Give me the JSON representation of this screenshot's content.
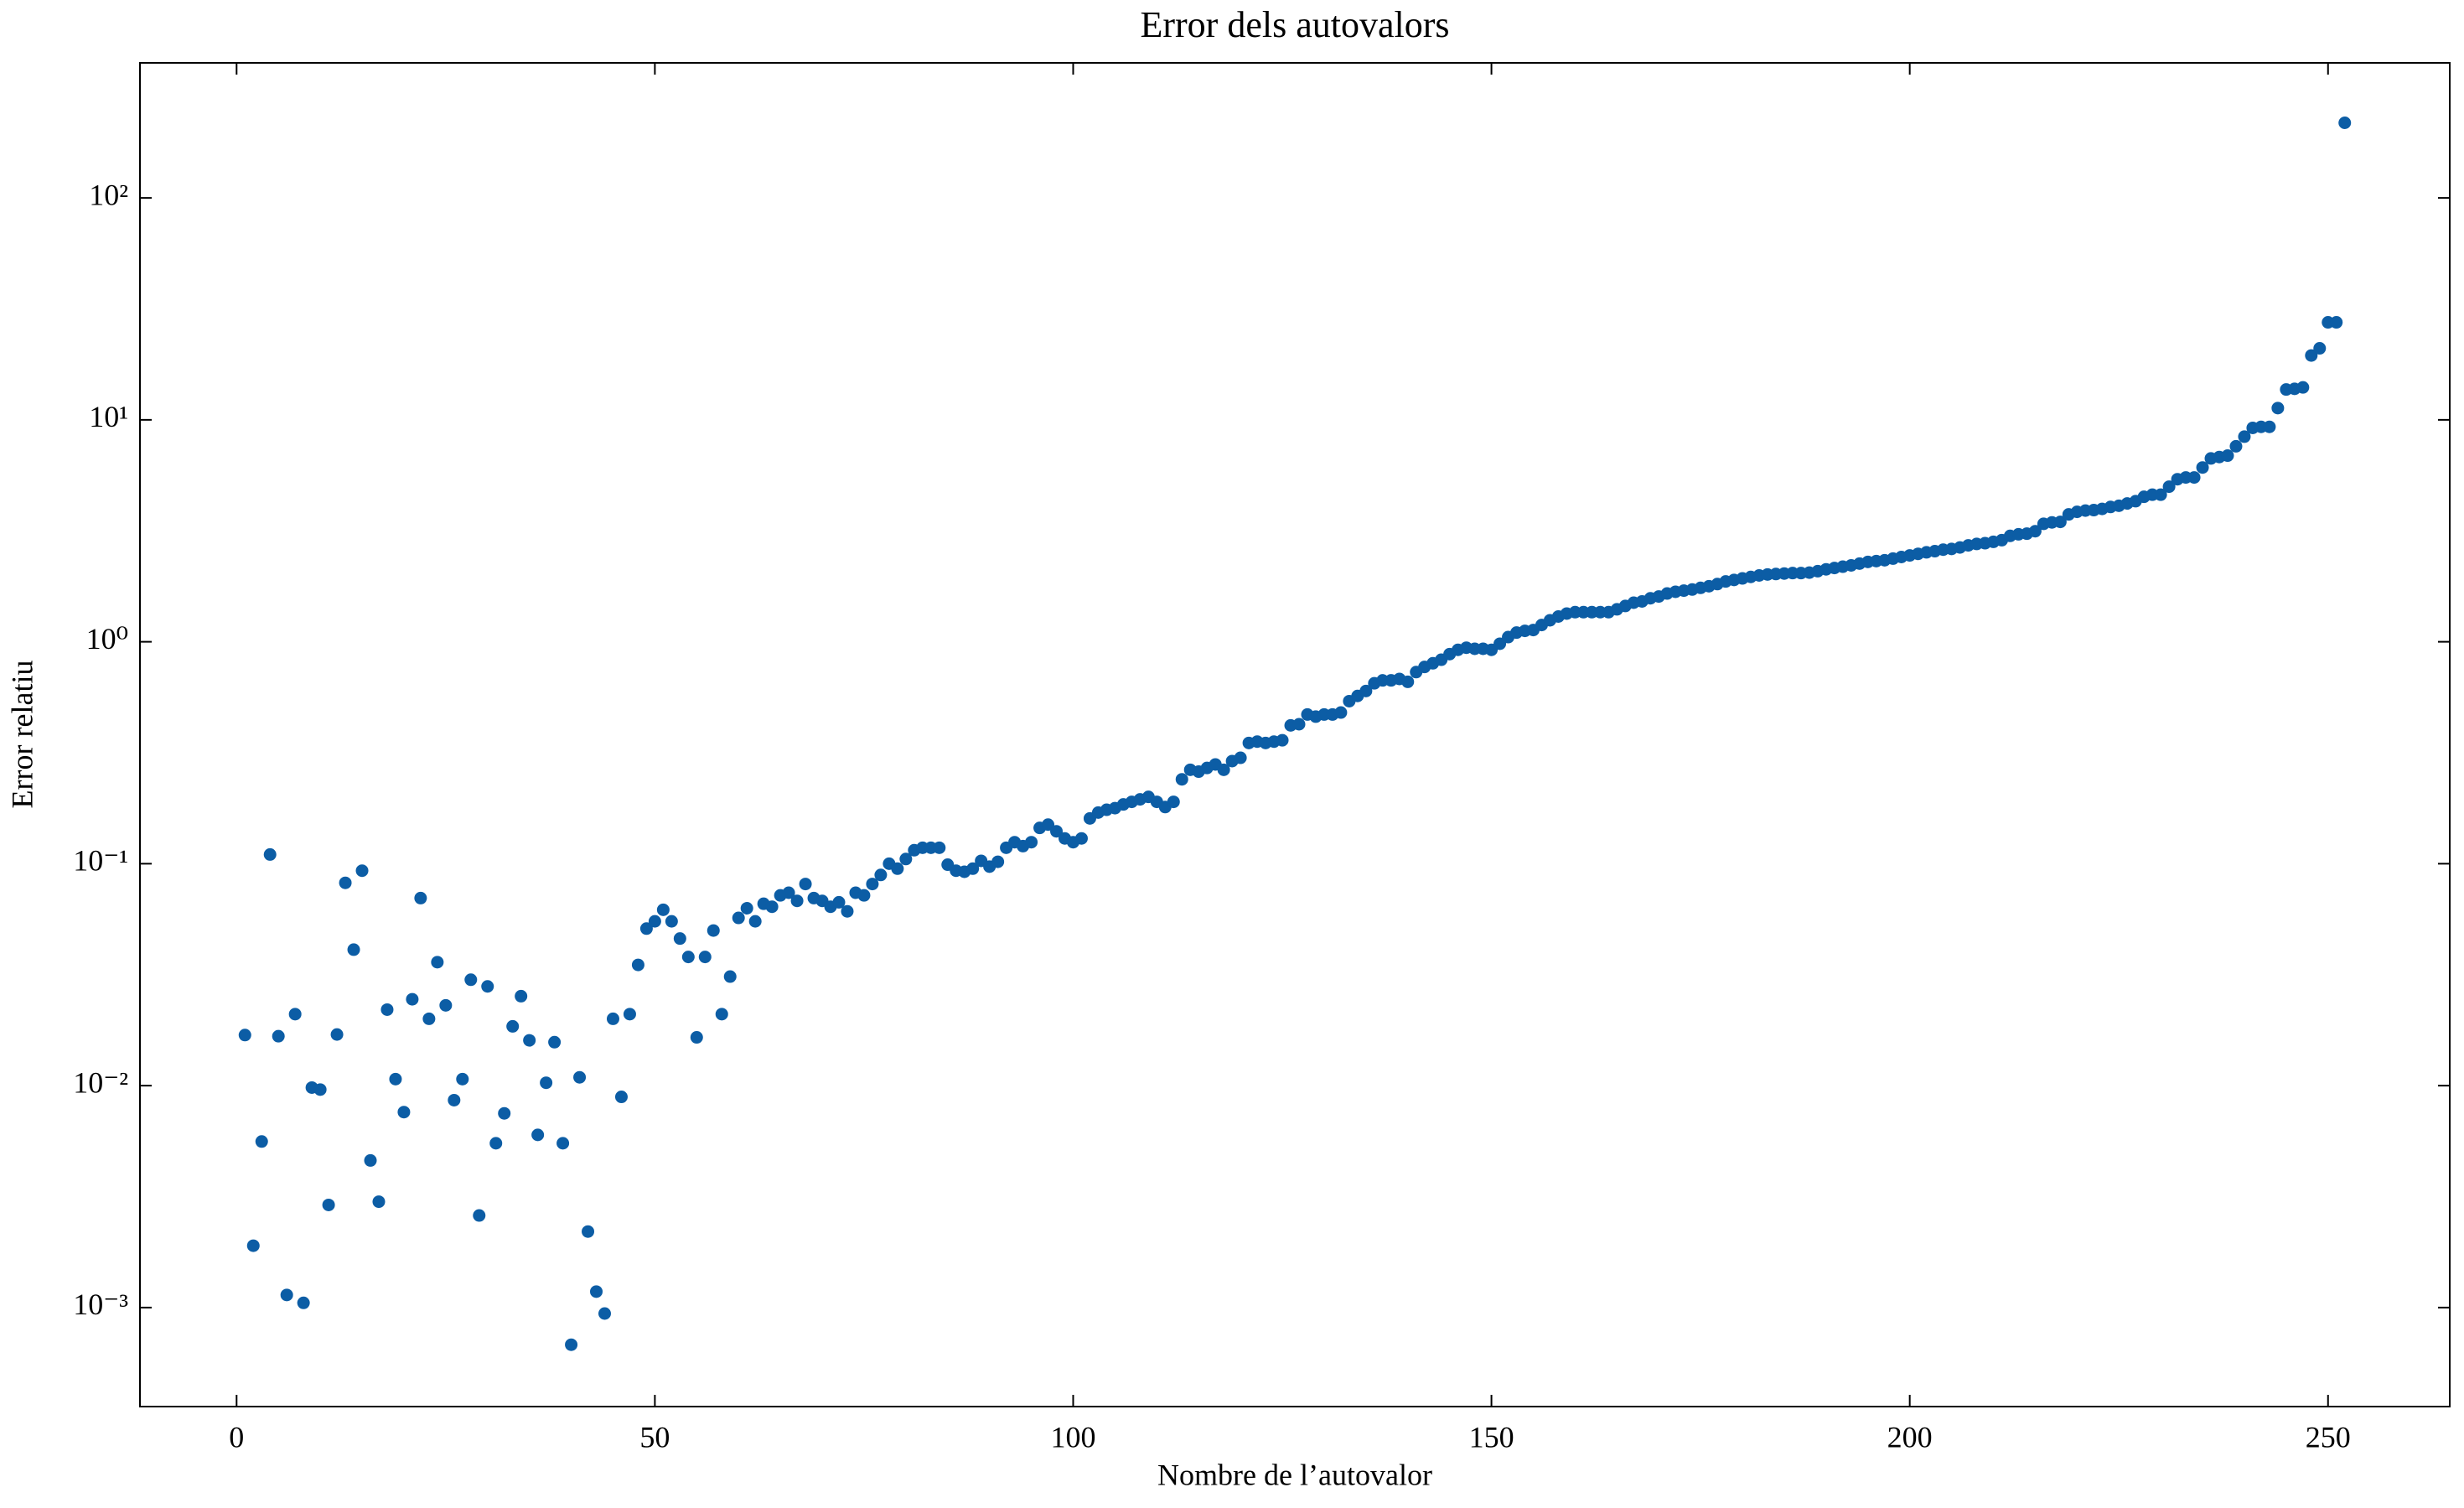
{
  "chart_data": {
    "type": "scatter",
    "title": "Error dels autovalors",
    "xlabel": "Nombre de l’autovalor",
    "ylabel": "Error relatiu",
    "yscale": "log",
    "color": "#0C5DA5",
    "xlim": [
      -11.55,
      264.55
    ],
    "ylim": [
      0.000358,
      406
    ],
    "xticks": [
      0,
      50,
      100,
      150,
      200,
      250
    ],
    "yticks": [
      {
        "value": 0.001,
        "label": "10⁻³"
      },
      {
        "value": 0.01,
        "label": "10⁻²"
      },
      {
        "value": 0.1,
        "label": "10⁻¹"
      },
      {
        "value": 1,
        "label": "10⁰"
      },
      {
        "value": 10,
        "label": "10¹"
      },
      {
        "value": 100,
        "label": "10²"
      }
    ],
    "x": [
      1,
      2,
      3,
      4,
      5,
      6,
      7,
      8,
      9,
      10,
      11,
      12,
      13,
      14,
      15,
      16,
      17,
      18,
      19,
      20,
      21,
      22,
      23,
      24,
      25,
      26,
      27,
      28,
      29,
      30,
      31,
      32,
      33,
      34,
      35,
      36,
      37,
      38,
      39,
      40,
      41,
      42,
      43,
      44,
      45,
      46,
      47,
      48,
      49,
      50,
      51,
      52,
      53,
      54,
      55,
      56,
      57,
      58,
      59,
      60,
      61,
      62,
      63,
      64,
      65,
      66,
      67,
      68,
      69,
      70,
      71,
      72,
      73,
      74,
      75,
      76,
      77,
      78,
      79,
      80,
      81,
      82,
      83,
      84,
      85,
      86,
      87,
      88,
      89,
      90,
      91,
      92,
      93,
      94,
      95,
      96,
      97,
      98,
      99,
      100,
      101,
      102,
      103,
      104,
      105,
      106,
      107,
      108,
      109,
      110,
      111,
      112,
      113,
      114,
      115,
      116,
      117,
      118,
      119,
      120,
      121,
      122,
      123,
      124,
      125,
      126,
      127,
      128,
      129,
      130,
      131,
      132,
      133,
      134,
      135,
      136,
      137,
      138,
      139,
      140,
      141,
      142,
      143,
      144,
      145,
      146,
      147,
      148,
      149,
      150,
      151,
      152,
      153,
      154,
      155,
      156,
      157,
      158,
      159,
      160,
      161,
      162,
      163,
      164,
      165,
      166,
      167,
      168,
      169,
      170,
      171,
      172,
      173,
      174,
      175,
      176,
      177,
      178,
      179,
      180,
      181,
      182,
      183,
      184,
      185,
      186,
      187,
      188,
      189,
      190,
      191,
      192,
      193,
      194,
      195,
      196,
      197,
      198,
      199,
      200,
      201,
      202,
      203,
      204,
      205,
      206,
      207,
      208,
      209,
      210,
      211,
      212,
      213,
      214,
      215,
      216,
      217,
      218,
      219,
      220,
      221,
      222,
      223,
      224,
      225,
      226,
      227,
      228,
      229,
      230,
      231,
      232,
      233,
      234,
      235,
      236,
      237,
      238,
      239,
      240,
      241,
      242,
      243,
      244,
      245,
      246,
      247,
      248,
      249,
      250,
      251,
      252
    ],
    "values": [
      0.0169,
      0.0019,
      0.0056,
      0.11,
      0.0167,
      0.00114,
      0.021,
      0.00105,
      0.0098,
      0.0096,
      0.0029,
      0.017,
      0.082,
      0.041,
      0.093,
      0.0046,
      0.003,
      0.022,
      0.0107,
      0.0076,
      0.0245,
      0.07,
      0.02,
      0.036,
      0.023,
      0.0086,
      0.0107,
      0.03,
      0.0026,
      0.028,
      0.0055,
      0.0075,
      0.0185,
      0.0253,
      0.016,
      0.006,
      0.0103,
      0.0157,
      0.0055,
      0.00068,
      0.0109,
      0.0022,
      0.00118,
      0.00094,
      0.02,
      0.0089,
      0.021,
      0.035,
      0.051,
      0.055,
      0.062,
      0.055,
      0.046,
      0.038,
      0.0165,
      0.038,
      0.05,
      0.021,
      0.031,
      0.057,
      0.063,
      0.055,
      0.066,
      0.064,
      0.072,
      0.074,
      0.068,
      0.081,
      0.07,
      0.068,
      0.064,
      0.067,
      0.061,
      0.074,
      0.072,
      0.081,
      0.089,
      0.1,
      0.095,
      0.105,
      0.115,
      0.118,
      0.118,
      0.118,
      0.099,
      0.093,
      0.092,
      0.095,
      0.103,
      0.097,
      0.102,
      0.118,
      0.125,
      0.12,
      0.125,
      0.145,
      0.15,
      0.14,
      0.13,
      0.125,
      0.13,
      0.16,
      0.17,
      0.175,
      0.178,
      0.185,
      0.19,
      0.195,
      0.2,
      0.19,
      0.18,
      0.19,
      0.24,
      0.265,
      0.26,
      0.27,
      0.28,
      0.265,
      0.29,
      0.3,
      0.35,
      0.355,
      0.35,
      0.355,
      0.36,
      0.42,
      0.425,
      0.47,
      0.46,
      0.47,
      0.47,
      0.48,
      0.54,
      0.57,
      0.6,
      0.65,
      0.67,
      0.67,
      0.68,
      0.66,
      0.73,
      0.77,
      0.8,
      0.83,
      0.88,
      0.92,
      0.94,
      0.93,
      0.93,
      0.92,
      0.98,
      1.05,
      1.1,
      1.12,
      1.13,
      1.19,
      1.25,
      1.3,
      1.34,
      1.36,
      1.36,
      1.36,
      1.36,
      1.36,
      1.4,
      1.45,
      1.5,
      1.52,
      1.57,
      1.6,
      1.65,
      1.68,
      1.7,
      1.72,
      1.75,
      1.78,
      1.82,
      1.87,
      1.9,
      1.93,
      1.96,
      1.99,
      2.01,
      2.02,
      2.03,
      2.04,
      2.04,
      2.05,
      2.08,
      2.12,
      2.15,
      2.18,
      2.21,
      2.25,
      2.29,
      2.31,
      2.33,
      2.37,
      2.41,
      2.45,
      2.49,
      2.53,
      2.56,
      2.6,
      2.62,
      2.66,
      2.72,
      2.76,
      2.78,
      2.82,
      2.87,
      3.0,
      3.05,
      3.07,
      3.15,
      3.4,
      3.45,
      3.47,
      3.75,
      3.85,
      3.9,
      3.92,
      3.97,
      4.05,
      4.1,
      4.2,
      4.3,
      4.5,
      4.6,
      4.6,
      5.0,
      5.4,
      5.5,
      5.5,
      6.1,
      6.7,
      6.8,
      6.9,
      7.6,
      8.4,
      9.2,
      9.3,
      9.3,
      11.3,
      13.7,
      13.8,
      14,
      19.5,
      21,
      27.5,
      27.5,
      218
    ]
  }
}
